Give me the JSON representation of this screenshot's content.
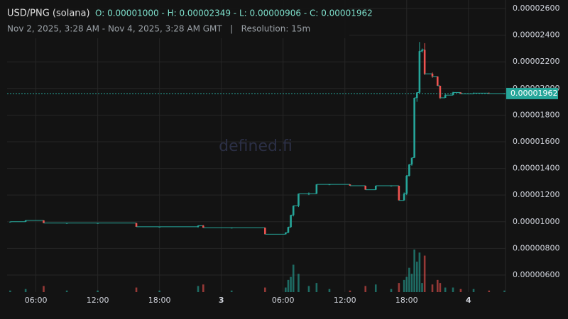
{
  "chart_data": {
    "type": "candlestick",
    "title": "USD/PNG (solana)",
    "ohlc_text": "O: 0.00001000 - H: 0.00002349 - L: 0.00000906 - C: 0.00001962",
    "subtitle": "Nov 2, 2025, 3:28 AM - Nov 4, 2025, 3:28 AM GMT   |   Resolution: 15m",
    "watermark": "defined.fi",
    "up_color": "#26a69a",
    "down_color": "#ef5350",
    "grid": true,
    "x": [
      3.5,
      5,
      6.75,
      9,
      12,
      15.75,
      18,
      21.75,
      22.25,
      25,
      28.25,
      30.25,
      30.5,
      30.75,
      31,
      31.5,
      32.5,
      33.25,
      34.5,
      36.5,
      38,
      39,
      40.5,
      41.25,
      41.75,
      42,
      42.25,
      42.5,
      42.75,
      43,
      43.25,
      43.5,
      43.75,
      44.5,
      45,
      45.25,
      45.75,
      46.5,
      47.25,
      48.5,
      50,
      51.5
    ],
    "open": [
      1e-05,
      1e-05,
      1.01e-05,
      9.9e-06,
      9.9e-06,
      9.9e-06,
      9.62e-06,
      9.62e-06,
      9.7e-06,
      9.55e-06,
      9.55e-06,
      9.06e-06,
      9.18e-06,
      9.6e-06,
      1.05e-05,
      1.12e-05,
      1.21e-05,
      1.21e-05,
      1.28e-05,
      1.28e-05,
      1.27e-05,
      1.24e-05,
      1.27e-05,
      1.27e-05,
      1.16e-05,
      1.21e-05,
      1.345e-05,
      1.43e-05,
      1.48e-05,
      1.93e-05,
      1.97e-05,
      2.28e-05,
      2.29e-05,
      2.11e-05,
      2.09e-05,
      2.02e-05,
      1.93e-05,
      1.95e-05,
      1.97e-05,
      1.96e-05,
      1.965e-05,
      1.962e-05
    ],
    "high": [
      1e-05,
      1.012e-05,
      1.01e-05,
      9.9e-06,
      9.9e-06,
      9.9e-06,
      9.62e-06,
      9.72e-06,
      9.75e-06,
      9.55e-06,
      9.55e-06,
      9.2e-06,
      9.6e-06,
      1.05e-05,
      1.12e-05,
      1.21e-05,
      1.22e-05,
      1.28e-05,
      1.28e-05,
      1.28e-05,
      1.27e-05,
      1.27e-05,
      1.27e-05,
      1.27e-05,
      1.22e-05,
      1.35e-05,
      1.43e-05,
      1.48e-05,
      1.93e-05,
      1.97e-05,
      2.349e-05,
      2.3e-05,
      2.34e-05,
      2.12e-05,
      2.09e-05,
      2.02e-05,
      1.96e-05,
      1.975e-05,
      1.97e-05,
      1.97e-05,
      1.97e-05,
      1.962e-05
    ],
    "low": [
      1e-05,
      1e-05,
      9.9e-06,
      9.9e-06,
      9.9e-06,
      9.62e-06,
      9.62e-06,
      9.55e-06,
      9.55e-06,
      9.55e-06,
      9.06e-06,
      9.06e-06,
      9.15e-06,
      9.55e-06,
      1.04e-05,
      1.11e-05,
      1.2e-05,
      1.21e-05,
      1.28e-05,
      1.27e-05,
      1.24e-05,
      1.24e-05,
      1.27e-05,
      1.16e-05,
      1.16e-05,
      1.2e-05,
      1.34e-05,
      1.42e-05,
      1.48e-05,
      1.9e-05,
      1.96e-05,
      2.27e-05,
      2.1e-05,
      2.08e-05,
      2.02e-05,
      1.92e-05,
      1.93e-05,
      1.95e-05,
      1.96e-05,
      1.96e-05,
      1.96e-05,
      1.962e-05
    ],
    "close": [
      1e-05,
      1.01e-05,
      9.9e-06,
      9.9e-06,
      9.9e-06,
      9.62e-06,
      9.62e-06,
      9.7e-06,
      9.55e-06,
      9.55e-06,
      9.06e-06,
      9.18e-06,
      9.6e-06,
      1.05e-05,
      1.12e-05,
      1.21e-05,
      1.21e-05,
      1.28e-05,
      1.28e-05,
      1.27e-05,
      1.24e-05,
      1.27e-05,
      1.27e-05,
      1.16e-05,
      1.21e-05,
      1.345e-05,
      1.43e-05,
      1.48e-05,
      1.93e-05,
      1.97e-05,
      2.28e-05,
      2.29e-05,
      2.11e-05,
      2.09e-05,
      2.02e-05,
      1.93e-05,
      1.95e-05,
      1.97e-05,
      1.96e-05,
      1.965e-05,
      1.962e-05,
      1.962e-05
    ],
    "volume": [
      1,
      2,
      4,
      1,
      1,
      3,
      1,
      4,
      5,
      1,
      3,
      3,
      8,
      10,
      18,
      12,
      4,
      6,
      2,
      1,
      4,
      5,
      2,
      6,
      8,
      10,
      16,
      12,
      28,
      20,
      26,
      6,
      24,
      5,
      8,
      6,
      3,
      3,
      2,
      2,
      1,
      1
    ],
    "last_price": {
      "value": 1.962e-05,
      "label": "0.00001962"
    },
    "xlim": [
      3.2,
      51.6
    ],
    "xticks": [
      {
        "value": 6,
        "label": "06:00"
      },
      {
        "value": 12,
        "label": "12:00"
      },
      {
        "value": 18,
        "label": "18:00"
      },
      {
        "value": 24,
        "label": "3"
      },
      {
        "value": 30,
        "label": "06:00"
      },
      {
        "value": 36,
        "label": "12:00"
      },
      {
        "value": 42,
        "label": "18:00"
      },
      {
        "value": 48,
        "label": "4"
      }
    ],
    "ylim": [
      4.72e-06,
      2.664e-05
    ],
    "yticks": [
      {
        "value": 6e-06,
        "label": "0.00000600"
      },
      {
        "value": 8e-06,
        "label": "0.00000800"
      },
      {
        "value": 1e-05,
        "label": "0.00001000"
      },
      {
        "value": 1.2e-05,
        "label": "0.00001200"
      },
      {
        "value": 1.4e-05,
        "label": "0.00001400"
      },
      {
        "value": 1.6e-05,
        "label": "0.00001600"
      },
      {
        "value": 1.8e-05,
        "label": "0.00001800"
      },
      {
        "value": 2e-05,
        "label": "0.00002000"
      },
      {
        "value": 2.2e-05,
        "label": "0.00002200"
      },
      {
        "value": 2.4e-05,
        "label": "0.00002400"
      },
      {
        "value": 2.6e-05,
        "label": "0.00002600"
      }
    ]
  }
}
